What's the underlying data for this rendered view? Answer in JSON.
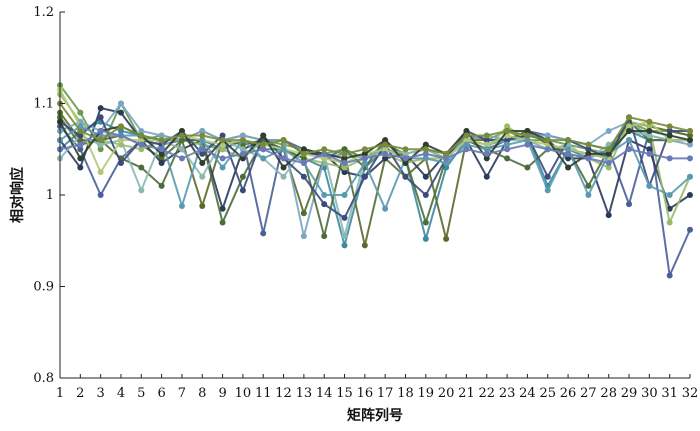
{
  "chart_data": {
    "type": "line",
    "title": "",
    "xlabel": "矩阵列号",
    "ylabel": "相对响应",
    "x": [
      1,
      2,
      3,
      4,
      5,
      6,
      7,
      8,
      9,
      10,
      11,
      12,
      13,
      14,
      15,
      16,
      17,
      18,
      19,
      20,
      21,
      22,
      23,
      24,
      25,
      26,
      27,
      28,
      29,
      30,
      31,
      32
    ],
    "xlim": [
      1,
      32
    ],
    "ylim": [
      0.8,
      1.2
    ],
    "yticks": [
      0.8,
      0.9,
      1,
      1.1,
      1.2
    ],
    "ytick_labels": [
      "0.8",
      "0.9",
      "1",
      "1.1",
      "1.2"
    ],
    "grid": false,
    "legend": "none",
    "series": [
      {
        "color": "#4a5f9a",
        "values": [
          1.075,
          1.05,
          1.0,
          1.04,
          1.06,
          1.055,
          1.06,
          1.055,
          1.05,
          1.06,
          0.958,
          1.06,
          1.05,
          1.04,
          1.05,
          1.04,
          1.05,
          1.045,
          1.05,
          1.045,
          1.06,
          1.05,
          1.06,
          1.07,
          1.065,
          1.06,
          1.055,
          1.05,
          0.99,
          1.07,
          0.912,
          0.962
        ]
      },
      {
        "color": "#6a9a4a",
        "values": [
          1.12,
          1.09,
          1.05,
          1.1,
          1.06,
          1.065,
          1.06,
          1.07,
          1.06,
          1.065,
          1.06,
          1.055,
          1.05,
          1.045,
          1.05,
          1.04,
          1.055,
          1.045,
          1.05,
          1.04,
          1.065,
          1.06,
          1.07,
          1.06,
          1.06,
          1.055,
          1.05,
          1.045,
          1.08,
          1.07,
          1.07,
          1.065
        ]
      },
      {
        "color": "#3a8aa0",
        "values": [
          1.05,
          1.07,
          1.08,
          1.07,
          1.065,
          1.06,
          1.06,
          1.06,
          1.05,
          1.06,
          1.05,
          1.05,
          1.04,
          1.03,
          0.945,
          1.03,
          1.05,
          1.04,
          0.952,
          1.03,
          1.06,
          1.055,
          1.06,
          1.065,
          1.01,
          1.05,
          1.04,
          1.05,
          1.07,
          1.06,
          1.06,
          1.06
        ]
      },
      {
        "color": "#5a6a2a",
        "values": [
          1.09,
          1.06,
          1.06,
          1.065,
          1.055,
          1.04,
          1.06,
          0.988,
          1.06,
          1.055,
          1.06,
          1.05,
          0.98,
          1.04,
          1.045,
          0.945,
          1.04,
          1.02,
          1.04,
          0.952,
          1.06,
          1.06,
          1.06,
          1.07,
          1.055,
          1.05,
          1.045,
          1.04,
          1.08,
          1.075,
          1.07,
          1.065
        ]
      },
      {
        "color": "#2a3a5a",
        "values": [
          1.06,
          1.03,
          1.095,
          1.09,
          1.06,
          1.035,
          1.05,
          1.06,
          0.985,
          1.05,
          1.06,
          1.06,
          1.045,
          1.045,
          1.025,
          1.02,
          1.04,
          1.045,
          1.02,
          1.045,
          1.06,
          1.02,
          1.06,
          1.065,
          1.06,
          1.04,
          1.04,
          0.978,
          1.06,
          1.05,
          0.985,
          1.0
        ]
      },
      {
        "color": "#9aba6a",
        "values": [
          1.11,
          1.08,
          1.06,
          1.055,
          1.05,
          1.06,
          1.06,
          1.055,
          1.05,
          1.04,
          1.06,
          1.05,
          1.04,
          1.035,
          1.03,
          1.04,
          1.045,
          1.035,
          1.04,
          1.04,
          1.06,
          1.05,
          1.075,
          1.06,
          1.05,
          1.045,
          1.04,
          1.03,
          1.08,
          1.075,
          0.97,
          1.02
        ]
      },
      {
        "color": "#7aa6c6",
        "values": [
          1.07,
          1.08,
          1.07,
          1.1,
          1.07,
          1.065,
          1.06,
          1.07,
          1.06,
          1.065,
          1.06,
          1.06,
          0.955,
          1.04,
          1.045,
          1.04,
          1.05,
          1.045,
          1.05,
          1.045,
          1.06,
          1.065,
          1.06,
          1.065,
          1.065,
          1.06,
          1.055,
          1.07,
          1.08,
          1.065,
          1.06,
          1.055
        ]
      },
      {
        "color": "#4e6c3a",
        "values": [
          1.085,
          1.055,
          1.06,
          1.04,
          1.03,
          1.01,
          1.06,
          1.06,
          0.97,
          1.02,
          1.06,
          1.05,
          1.04,
          0.955,
          1.05,
          1.03,
          1.06,
          1.04,
          0.97,
          1.04,
          1.06,
          1.05,
          1.04,
          1.03,
          1.05,
          1.05,
          1.01,
          1.05,
          1.08,
          1.06,
          1.06,
          1.06
        ]
      },
      {
        "color": "#8ab8b0",
        "values": [
          1.04,
          1.065,
          1.055,
          1.06,
          1.005,
          1.06,
          1.05,
          1.02,
          1.06,
          1.05,
          1.04,
          1.02,
          1.05,
          1.045,
          0.955,
          1.04,
          1.05,
          1.045,
          1.05,
          1.04,
          1.06,
          1.055,
          1.06,
          1.06,
          1.05,
          1.055,
          1.04,
          1.055,
          1.07,
          1.065,
          1.06,
          1.06
        ]
      },
      {
        "color": "#3a4a7a",
        "values": [
          1.08,
          1.065,
          1.085,
          1.035,
          1.06,
          1.055,
          1.07,
          1.045,
          1.065,
          1.005,
          1.065,
          1.04,
          1.02,
          0.99,
          0.975,
          1.02,
          1.055,
          1.02,
          1.0,
          1.04,
          1.07,
          1.06,
          1.06,
          1.065,
          1.02,
          1.06,
          1.05,
          1.04,
          1.085,
          1.01,
          1.07,
          1.07
        ]
      },
      {
        "color": "#b0c878",
        "values": [
          1.115,
          1.075,
          1.025,
          1.06,
          1.06,
          1.06,
          1.065,
          1.06,
          1.055,
          1.06,
          1.055,
          1.05,
          1.045,
          1.04,
          1.035,
          1.045,
          1.05,
          1.04,
          1.045,
          1.04,
          1.06,
          1.055,
          1.065,
          1.06,
          1.055,
          1.05,
          1.045,
          1.04,
          1.075,
          1.08,
          1.06,
          1.06
        ]
      },
      {
        "color": "#5a9ab0",
        "values": [
          1.06,
          1.075,
          1.065,
          1.065,
          1.065,
          1.06,
          0.988,
          1.06,
          1.03,
          1.06,
          1.04,
          1.05,
          1.035,
          1.0,
          1.0,
          1.035,
          0.985,
          1.04,
          1.04,
          1.035,
          1.055,
          1.05,
          1.055,
          1.06,
          1.005,
          1.05,
          1.0,
          1.045,
          1.06,
          1.01,
          1.0,
          1.02
        ]
      },
      {
        "color": "#2e3e2e",
        "values": [
          1.08,
          1.04,
          1.07,
          1.075,
          1.065,
          1.045,
          1.07,
          1.035,
          1.06,
          1.04,
          1.065,
          1.03,
          1.05,
          1.045,
          1.04,
          1.045,
          1.06,
          1.035,
          1.055,
          1.045,
          1.07,
          1.04,
          1.07,
          1.07,
          1.06,
          1.03,
          1.045,
          1.045,
          1.07,
          1.07,
          1.065,
          1.06
        ]
      },
      {
        "color": "#6a7ab8",
        "values": [
          1.05,
          1.055,
          1.07,
          1.065,
          1.055,
          1.05,
          1.04,
          1.05,
          1.04,
          1.045,
          1.05,
          1.04,
          1.035,
          1.045,
          1.035,
          1.04,
          1.045,
          1.04,
          1.045,
          1.04,
          1.05,
          1.045,
          1.05,
          1.055,
          1.05,
          1.045,
          1.04,
          1.035,
          1.05,
          1.045,
          1.04,
          1.04
        ]
      },
      {
        "color": "#7a8a3a",
        "values": [
          1.1,
          1.07,
          1.06,
          1.075,
          1.065,
          1.06,
          1.065,
          1.065,
          1.06,
          1.06,
          1.055,
          1.06,
          1.045,
          1.05,
          1.045,
          1.05,
          1.055,
          1.05,
          1.05,
          1.045,
          1.065,
          1.065,
          1.07,
          1.065,
          1.06,
          1.06,
          1.055,
          1.05,
          1.085,
          1.08,
          1.075,
          1.07
        ]
      }
    ]
  }
}
